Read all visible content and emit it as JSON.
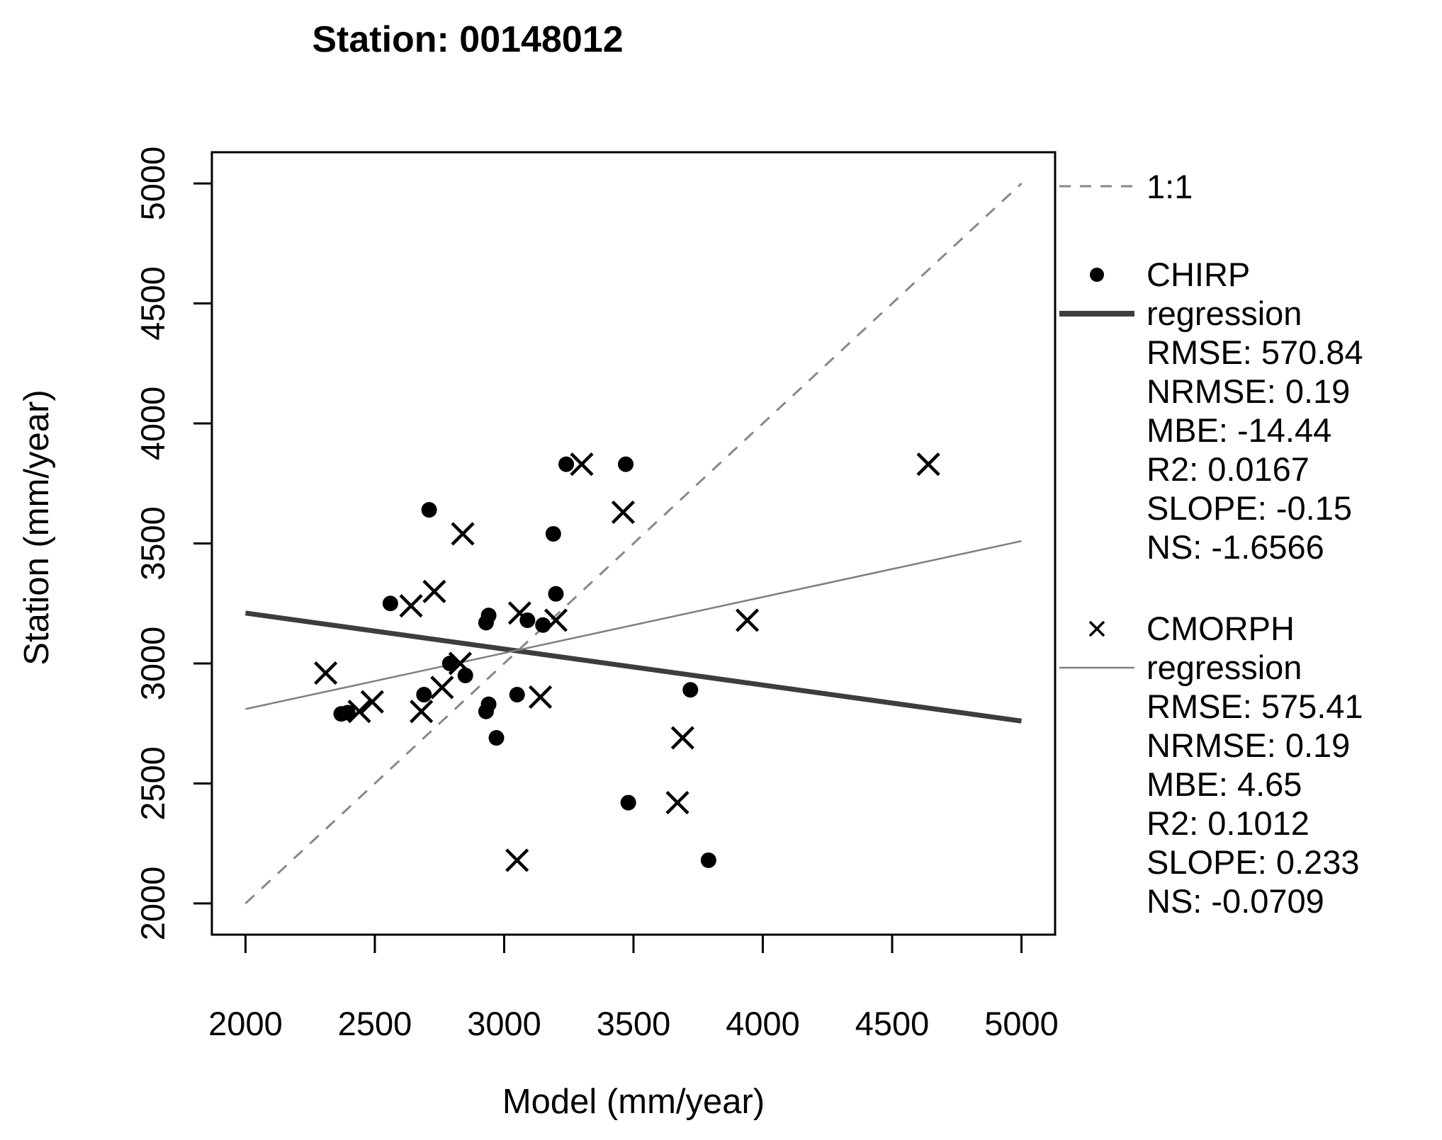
{
  "title": "Station: 00148012",
  "axes": {
    "x_label": "Model (mm/year)",
    "y_label": "Station (mm/year)"
  },
  "chart_data": {
    "type": "scatter",
    "title": "Station: 00148012",
    "xlabel": "Model (mm/year)",
    "ylabel": "Station (mm/year)",
    "xlim": [
      1870,
      5130
    ],
    "ylim": [
      1870,
      5130
    ],
    "x_ticks": [
      2000,
      2500,
      3000,
      3500,
      4000,
      4500,
      5000
    ],
    "y_ticks": [
      2000,
      2500,
      3000,
      3500,
      4000,
      4500,
      5000
    ],
    "grid": false,
    "legend_position": "right",
    "series": [
      {
        "name": "CHIRP",
        "marker": "circle",
        "color": "#000000",
        "points": [
          [
            3240,
            3830
          ],
          [
            3470,
            3830
          ],
          [
            2710,
            3640
          ],
          [
            3190,
            3540
          ],
          [
            3200,
            3290
          ],
          [
            2560,
            3250
          ],
          [
            2940,
            3200
          ],
          [
            2930,
            3170
          ],
          [
            3090,
            3180
          ],
          [
            3150,
            3160
          ],
          [
            2790,
            3000
          ],
          [
            2850,
            2950
          ],
          [
            2690,
            2870
          ],
          [
            2370,
            2790
          ],
          [
            2395,
            2795
          ],
          [
            2930,
            2800
          ],
          [
            2940,
            2830
          ],
          [
            3050,
            2870
          ],
          [
            2970,
            2690
          ],
          [
            3720,
            2890
          ],
          [
            3480,
            2420
          ],
          [
            3790,
            2180
          ]
        ]
      },
      {
        "name": "CMORPH",
        "marker": "x",
        "color": "#000000",
        "points": [
          [
            3300,
            3830
          ],
          [
            3460,
            3630
          ],
          [
            2840,
            3540
          ],
          [
            2730,
            3300
          ],
          [
            2640,
            3240
          ],
          [
            3060,
            3210
          ],
          [
            3200,
            3180
          ],
          [
            3940,
            3180
          ],
          [
            2310,
            2960
          ],
          [
            2830,
            3000
          ],
          [
            2760,
            2900
          ],
          [
            2440,
            2800
          ],
          [
            2490,
            2840
          ],
          [
            2680,
            2800
          ],
          [
            3140,
            2860
          ],
          [
            3690,
            2690
          ],
          [
            3670,
            2420
          ],
          [
            3050,
            2180
          ],
          [
            4640,
            3830
          ]
        ]
      }
    ],
    "lines": [
      {
        "name": "1:1",
        "style": "dashed",
        "color": "#888888",
        "width": 3,
        "from": [
          2000,
          2000
        ],
        "to": [
          5000,
          5000
        ]
      },
      {
        "name": "CHIRP regression",
        "style": "solid",
        "color": "#3d3d3d",
        "width": 7,
        "from": [
          2000,
          3210
        ],
        "to": [
          5000,
          2760
        ]
      },
      {
        "name": "CMORPH regression",
        "style": "solid",
        "color": "#7f7f7f",
        "width": 2.5,
        "from": [
          2000,
          2810
        ],
        "to": [
          5000,
          3510
        ]
      }
    ]
  },
  "legend": {
    "one_to_one_label": "1:1",
    "chirp": {
      "name": "CHIRP",
      "regression_label": "regression",
      "stats": [
        "RMSE: 570.84",
        "NRMSE: 0.19",
        "MBE: -14.44",
        "R2: 0.0167",
        "SLOPE: -0.15",
        "NS: -1.6566"
      ]
    },
    "cmorph": {
      "name": "CMORPH",
      "regression_label": "regression",
      "stats": [
        "RMSE: 575.41",
        "NRMSE: 0.19",
        "MBE: 4.65",
        "R2: 0.1012",
        "SLOPE: 0.233",
        "NS: -0.0709"
      ]
    }
  },
  "colors": {
    "background": "#ffffff",
    "axis": "#000000",
    "one_to_one_line": "#888888",
    "chirp_regression": "#3d3d3d",
    "cmorph_regression": "#7f7f7f",
    "markers": "#000000"
  }
}
